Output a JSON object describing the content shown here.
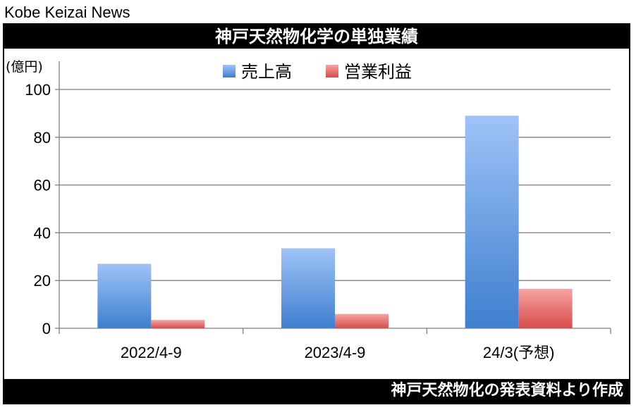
{
  "brand": "Kobe Keizai News",
  "title": "神戸天然物化学の単独業績",
  "footer": "神戸天然物化の発表資料より作成",
  "chart_data": {
    "type": "bar",
    "unit_label": "(億円)",
    "categories": [
      "2022/4-9",
      "2023/4-9",
      "24/3(予想)"
    ],
    "series": [
      {
        "name": "売上高",
        "values": [
          27,
          33.5,
          89
        ]
      },
      {
        "name": "営業利益",
        "values": [
          3.5,
          6,
          16.5
        ]
      }
    ],
    "ylim": [
      0,
      100
    ],
    "yticks": [
      0,
      20,
      40,
      60,
      80,
      100
    ],
    "grid": true,
    "legend": "top-center",
    "colors": {
      "売上高": {
        "top": "#9ec3f7",
        "bottom": "#3f7fcf"
      },
      "営業利益": {
        "top": "#f7a3a3",
        "bottom": "#d94b4b"
      }
    }
  }
}
